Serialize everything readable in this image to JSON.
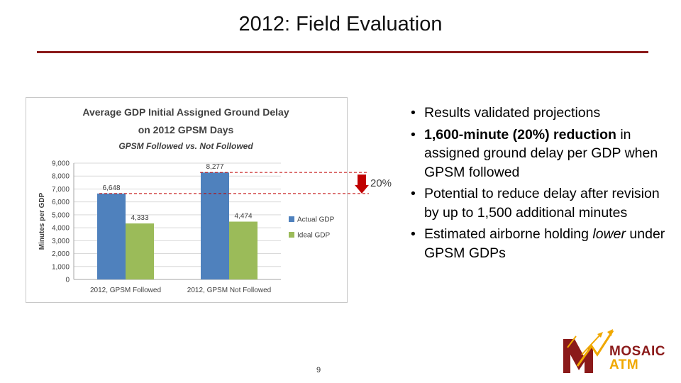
{
  "slide": {
    "title": "2012: Field Evaluation",
    "page_number": "9"
  },
  "bullets": {
    "items": [
      [
        {
          "t": "Results validated projections",
          "s": "normal"
        }
      ],
      [
        {
          "t": "1,600-minute (20%) reduction",
          "s": "bold"
        },
        {
          "t": " in assigned ground delay per GDP when GPSM followed",
          "s": "normal"
        }
      ],
      [
        {
          "t": "Potential to reduce delay after revision by up to 1,500 additional minutes",
          "s": "normal"
        }
      ],
      [
        {
          "t": "Estimated airborne holding ",
          "s": "normal"
        },
        {
          "t": "lower",
          "s": "italic"
        },
        {
          "t": " under GPSM GDPs",
          "s": "normal"
        }
      ]
    ]
  },
  "logo": {
    "line1": "MOSAIC",
    "line2": "ATM",
    "colors": {
      "maroon": "#8b1a1a",
      "gold": "#f0a800"
    }
  },
  "chart_data": {
    "type": "bar",
    "title": "Average GDP Initial Assigned Ground Delay",
    "title_line2": "on 2012 GPSM Days",
    "subtitle": "GPSM Followed vs. Not Followed",
    "ylabel": "Minutes per GDP",
    "xlabel": "",
    "categories": [
      "2012, GPSM Followed",
      "2012, GPSM Not Followed"
    ],
    "series": [
      {
        "name": "Actual GDP",
        "values": [
          6648,
          8277
        ],
        "labels": [
          "6,648",
          "8,277"
        ],
        "color": "#4f81bd"
      },
      {
        "name": "Ideal GDP",
        "values": [
          4333,
          4474
        ],
        "labels": [
          "4,333",
          "4,474"
        ],
        "color": "#9bbb59"
      }
    ],
    "ylim": [
      0,
      9000
    ],
    "yticks": [
      0,
      1000,
      2000,
      3000,
      4000,
      5000,
      6000,
      7000,
      8000,
      9000
    ],
    "ytick_labels": [
      "0",
      "1,000",
      "2,000",
      "3,000",
      "4,000",
      "5,000",
      "6,000",
      "7,000",
      "8,000",
      "9,000"
    ],
    "grid": true,
    "legend_position": "right",
    "annotation": {
      "text": "20%",
      "arrow_color": "#c00000",
      "line_color": "#c00000"
    }
  }
}
